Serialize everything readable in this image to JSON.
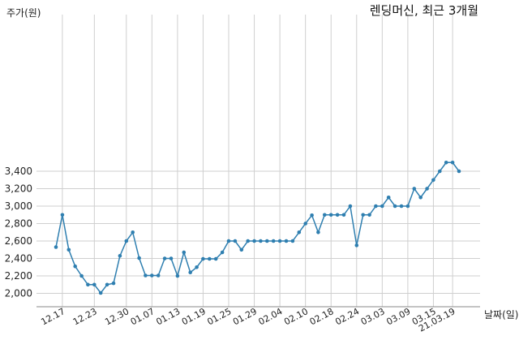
{
  "chart_data": {
    "type": "line",
    "title": "렌딩머신, 최근 3개월",
    "ylabel": "주가(원)",
    "xlabel": "날짜(일)",
    "ylim": [
      1950,
      3600
    ],
    "grid": true,
    "yticks": [
      2000,
      2200,
      2400,
      2600,
      2800,
      3000,
      3200,
      3400
    ],
    "ytick_labels": [
      "2,000",
      "2,200",
      "2,400",
      "2,600",
      "2,800",
      "3,000",
      "3,200",
      "3,400"
    ],
    "xtick_labels": [
      "12.17",
      "12.23",
      "12.30",
      "01.07",
      "01.13",
      "01.19",
      "01.25",
      "01.29",
      "02.04",
      "02.10",
      "02.18",
      "02.24",
      "03.03",
      "03.09",
      "03.15",
      "21.03.19"
    ],
    "xtick_index": [
      1,
      6,
      11,
      15,
      19,
      23,
      27,
      31,
      35,
      39,
      43,
      47,
      51,
      55,
      59,
      62
    ],
    "colors": {
      "line": "#2f7fb0",
      "grid": "#cfcfcf"
    },
    "series": [
      {
        "values": [
          2530,
          2900,
          2500,
          2310,
          2200,
          2100,
          2100,
          2005,
          2100,
          2115,
          2430,
          2600,
          2700,
          2405,
          2205,
          2205,
          2205,
          2400,
          2400,
          2200,
          2470,
          2240,
          2300,
          2395,
          2395,
          2395,
          2470,
          2600,
          2600,
          2500,
          2600,
          2600,
          2600,
          2600,
          2600,
          2600,
          2600,
          2600,
          2700,
          2800,
          2895,
          2700,
          2900,
          2900,
          2900,
          2900,
          3000,
          2550,
          2900,
          2900,
          3000,
          3000,
          3100,
          3000,
          3000,
          3000,
          3200,
          3100,
          3200,
          3300,
          3400,
          3500,
          3500,
          3400
        ]
      }
    ]
  }
}
